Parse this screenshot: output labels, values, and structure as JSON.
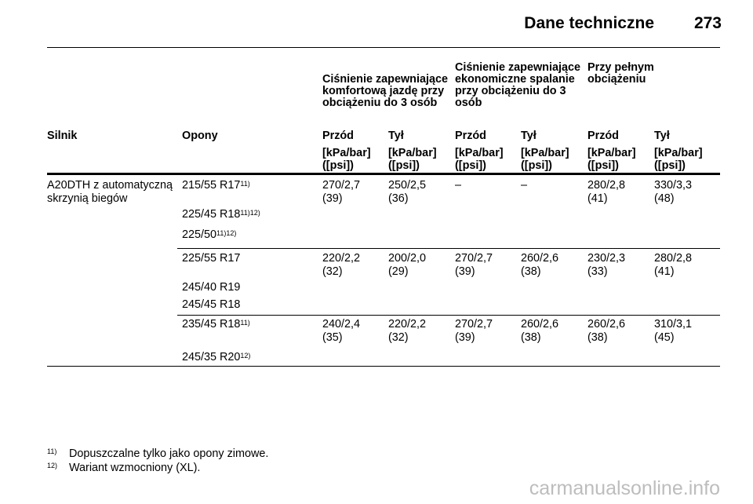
{
  "header": {
    "title": "Dane techniczne",
    "page": "273"
  },
  "groups": {
    "comfort": "Ciśnienie zapewniające komfortową jazdę przy obciążeniu do 3 osób",
    "eco": "Ciśnienie zapewniające ekonomiczne spalanie przy obciążeniu do 3 osób",
    "full": "Przy pełnym obciążeniu"
  },
  "columns": {
    "engine": "Silnik",
    "tyres": "Opony",
    "c1": "Przód",
    "c2": "Tył",
    "c3": "Przód",
    "c4": "Tył",
    "c5": "Przód",
    "c6": "Tył",
    "unit_line1": "[kPa/bar]",
    "unit_line2": "([psi])"
  },
  "engine": "A20DTH z automatyczną skrzynią biegów",
  "blocks": [
    {
      "tyres": [
        {
          "size": "215/55 R17",
          "sup": "11)"
        },
        {
          "size": "225/45 R18",
          "sup": "11)12)"
        },
        {
          "size": "225/50",
          "sup": "11)12)"
        }
      ],
      "values": [
        {
          "kpa": "270/2,7",
          "psi": "(39)"
        },
        {
          "kpa": "250/2,5",
          "psi": "(36)"
        },
        {
          "kpa": "–",
          "psi": ""
        },
        {
          "kpa": "–",
          "psi": ""
        },
        {
          "kpa": "280/2,8",
          "psi": "(41)"
        },
        {
          "kpa": "330/3,3",
          "psi": "(48)"
        }
      ]
    },
    {
      "tyres": [
        {
          "size": "225/55 R17",
          "sup": ""
        },
        {
          "size": "245/40 R19",
          "sup": ""
        },
        {
          "size": "245/45 R18",
          "sup": ""
        }
      ],
      "values": [
        {
          "kpa": "220/2,2",
          "psi": "(32)"
        },
        {
          "kpa": "200/2,0",
          "psi": "(29)"
        },
        {
          "kpa": "270/2,7",
          "psi": "(39)"
        },
        {
          "kpa": "260/2,6",
          "psi": "(38)"
        },
        {
          "kpa": "230/2,3",
          "psi": "(33)"
        },
        {
          "kpa": "280/2,8",
          "psi": "(41)"
        }
      ]
    },
    {
      "tyres": [
        {
          "size": "235/45 R18",
          "sup": "11)"
        },
        {
          "size": "245/35 R20",
          "sup": "12)"
        }
      ],
      "values": [
        {
          "kpa": "240/2,4",
          "psi": "(35)"
        },
        {
          "kpa": "220/2,2",
          "psi": "(32)"
        },
        {
          "kpa": "270/2,7",
          "psi": "(39)"
        },
        {
          "kpa": "260/2,6",
          "psi": "(38)"
        },
        {
          "kpa": "260/2,6",
          "psi": "(38)"
        },
        {
          "kpa": "310/3,1",
          "psi": "(45)"
        }
      ]
    }
  ],
  "footnotes": [
    {
      "mark": "11)",
      "text": "Dopuszczalne tylko jako opony zimowe."
    },
    {
      "mark": "12)",
      "text": "Wariant wzmocniony (XL)."
    }
  ],
  "watermark": "carmanualsonline.info"
}
